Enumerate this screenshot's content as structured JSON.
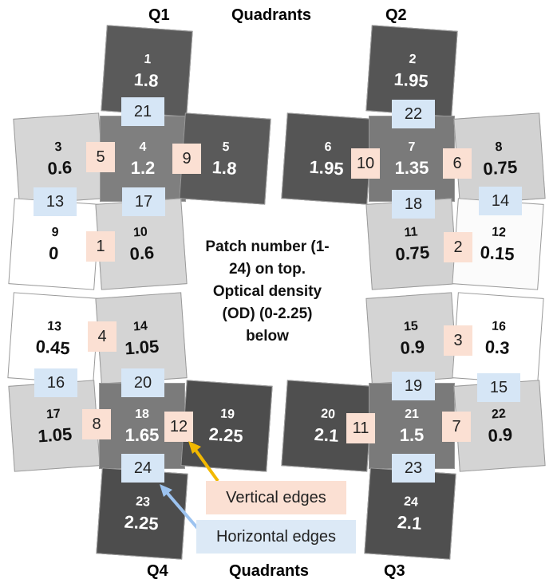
{
  "quadrant_labels": {
    "q1": "Q1",
    "q2": "Q2",
    "q3": "Q3",
    "q4": "Q4",
    "top": "Quadrants",
    "bottom": "Quadrants"
  },
  "patches": [
    {
      "num": "1",
      "od": "1.8",
      "shade": "#5a5a5a"
    },
    {
      "num": "2",
      "od": "1.95",
      "shade": "#555555"
    },
    {
      "num": "3",
      "od": "0.6",
      "shade": "#d6d6d6"
    },
    {
      "num": "4",
      "od": "1.2",
      "shade": "#7f7f7f"
    },
    {
      "num": "5",
      "od": "1.8",
      "shade": "#5a5a5a"
    },
    {
      "num": "6",
      "od": "1.95",
      "shade": "#555555"
    },
    {
      "num": "7",
      "od": "1.35",
      "shade": "#7a7a7a"
    },
    {
      "num": "8",
      "od": "0.75",
      "shade": "#d2d2d2"
    },
    {
      "num": "9",
      "od": "0",
      "shade": "#ffffff"
    },
    {
      "num": "10",
      "od": "0.6",
      "shade": "#d6d6d6"
    },
    {
      "num": "11",
      "od": "0.75",
      "shade": "#d2d2d2"
    },
    {
      "num": "12",
      "od": "0.15",
      "shade": "#fbfbfb"
    },
    {
      "num": "13",
      "od": "0.45",
      "shade": "#ffffff"
    },
    {
      "num": "14",
      "od": "1.05",
      "shade": "#d4d4d4"
    },
    {
      "num": "15",
      "od": "0.9",
      "shade": "#d4d4d4"
    },
    {
      "num": "16",
      "od": "0.3",
      "shade": "#ffffff"
    },
    {
      "num": "17",
      "od": "1.05",
      "shade": "#d4d4d4"
    },
    {
      "num": "18",
      "od": "1.65",
      "shade": "#7b7b7b"
    },
    {
      "num": "19",
      "od": "2.25",
      "shade": "#4d4d4d"
    },
    {
      "num": "20",
      "od": "2.1",
      "shade": "#4f4f4f"
    },
    {
      "num": "21",
      "od": "1.5",
      "shade": "#7a7a7a"
    },
    {
      "num": "22",
      "od": "0.9",
      "shade": "#d4d4d4"
    },
    {
      "num": "23",
      "od": "2.25",
      "shade": "#4d4d4d"
    },
    {
      "num": "24",
      "od": "2.1",
      "shade": "#4f4f4f"
    }
  ],
  "vertical_edge_markers": [
    "1",
    "2",
    "3",
    "4",
    "5",
    "6",
    "7",
    "8",
    "9",
    "10",
    "11",
    "12"
  ],
  "horizontal_edge_markers": [
    "13",
    "14",
    "15",
    "16",
    "17",
    "18",
    "19",
    "20",
    "21",
    "22",
    "23",
    "24"
  ],
  "center_text": [
    "Patch number (1-",
    "24) on top.",
    "Optical density",
    "(OD) (0-2.25)",
    "below"
  ],
  "legend": {
    "vertical": "Vertical edges",
    "horizontal": "Horizontal edges"
  },
  "colors": {
    "vertical_marker": "#fbe0d3",
    "horizontal_marker": "#d6e6f6",
    "vertical_arrow": "#f2b800",
    "horizontal_arrow": "#9cc3f0"
  }
}
